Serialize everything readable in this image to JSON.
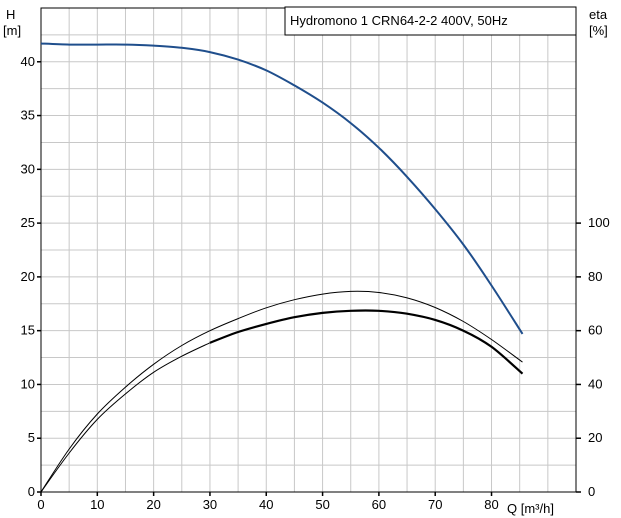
{
  "chart_data": {
    "type": "line",
    "title": "Hydromono 1 CRN64-2-2 400V, 50Hz",
    "left_axis": {
      "label_line1": "H",
      "label_line2": "[m]",
      "range": [
        0,
        45
      ],
      "ticks": [
        0,
        5,
        10,
        15,
        20,
        25,
        30,
        35,
        40
      ]
    },
    "right_axis": {
      "label_line1": "eta",
      "label_line2": "[%]",
      "range": [
        0,
        180
      ],
      "ticks": [
        0,
        20,
        40,
        60,
        80,
        100
      ]
    },
    "x_axis": {
      "label": "Q [m³/h]",
      "range": [
        0,
        95
      ],
      "ticks": [
        0,
        10,
        20,
        30,
        40,
        50,
        60,
        70,
        80
      ]
    },
    "grid": true,
    "series": [
      {
        "axis": "left",
        "color": "#1f4e8c",
        "width": 2,
        "x": [
          0,
          5,
          10,
          15,
          20,
          25,
          30,
          35,
          40,
          45,
          50,
          55,
          60,
          65,
          70,
          75,
          80,
          85.5
        ],
        "y": [
          41.7,
          41.6,
          41.6,
          41.6,
          41.5,
          41.3,
          40.9,
          40.2,
          39.2,
          37.8,
          36.2,
          34.3,
          32.0,
          29.3,
          26.3,
          23.0,
          19.2,
          14.7
        ]
      },
      {
        "axis": "right",
        "color": "#000000",
        "width": 1,
        "x": [
          0,
          5,
          10,
          15,
          20,
          25,
          30,
          35,
          40,
          45,
          50,
          55,
          60,
          65,
          70,
          75,
          80,
          85.5
        ],
        "y": [
          0,
          16,
          29,
          39,
          47.5,
          54.5,
          60,
          64.5,
          68.5,
          71.5,
          73.6,
          74.6,
          74.2,
          72.2,
          68.6,
          63.4,
          56.7,
          48.3
        ]
      },
      {
        "axis": "right",
        "color": "#000000",
        "width": 1,
        "x": [
          0,
          5,
          10,
          15,
          20,
          25,
          30
        ],
        "y": [
          0,
          14.5,
          27,
          36.5,
          44.5,
          50.5,
          55.5
        ]
      },
      {
        "axis": "right",
        "color": "#000000",
        "width": 2.2,
        "x": [
          30,
          35,
          40,
          45,
          50,
          55,
          60,
          65,
          70,
          75,
          80,
          85.5
        ],
        "y": [
          55.5,
          59.5,
          62.5,
          65,
          66.6,
          67.4,
          67.4,
          66.3,
          64,
          60,
          54,
          44
        ]
      }
    ]
  }
}
